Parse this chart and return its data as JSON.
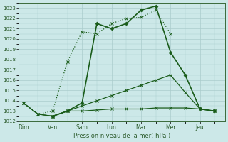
{
  "xlabel": "Pression niveau de la mer( hPa )",
  "background_color": "#cce8e8",
  "grid_color": "#aacccc",
  "line_color": "#1a5c1a",
  "ylim": [
    1012,
    1023.5
  ],
  "yticks": [
    1012,
    1013,
    1014,
    1015,
    1016,
    1017,
    1018,
    1019,
    1020,
    1021,
    1022,
    1023
  ],
  "x_labels": [
    "Dim",
    "Ven",
    "Sam",
    "Lun",
    "Mar",
    "Mer",
    "Jeu"
  ],
  "x_positions": [
    0,
    1,
    2,
    3,
    4,
    5,
    6
  ],
  "xlim": [
    -0.15,
    6.85
  ],
  "line_solid_x": [
    0,
    0.5,
    1.0,
    1.5,
    2.0,
    2.5,
    3.0,
    3.5,
    4.0,
    4.5,
    5.0,
    5.5,
    6.0,
    6.5
  ],
  "line_solid_y": [
    1013.8,
    1012.7,
    1012.5,
    1013.0,
    1013.0,
    1013.1,
    1013.2,
    1013.2,
    1013.2,
    1013.3,
    1013.3,
    1013.3,
    1013.2,
    1013.0
  ],
  "line_diag_x": [
    0,
    0.5,
    1.0,
    1.5,
    2.0,
    2.5,
    3.0,
    3.5,
    4.0,
    4.5,
    5.0,
    5.5,
    6.0,
    6.5
  ],
  "line_diag_y": [
    1013.8,
    1012.7,
    1012.5,
    1013.0,
    1013.5,
    1014.0,
    1014.5,
    1015.0,
    1015.5,
    1016.0,
    1016.5,
    1014.8,
    1013.2,
    1013.0
  ],
  "line_dotted_x": [
    0,
    0.5,
    1.0,
    1.5,
    2.0,
    2.5,
    3.0,
    3.5,
    4.0,
    4.5,
    5.0
  ],
  "line_dotted_y": [
    1013.8,
    1012.7,
    1013.0,
    1017.8,
    1020.7,
    1020.5,
    1021.5,
    1022.0,
    1022.1,
    1022.8,
    1020.5
  ],
  "line_main_x": [
    1.0,
    1.5,
    2.0,
    2.5,
    3.0,
    3.5,
    4.0,
    4.5,
    5.0,
    5.5,
    6.0,
    6.5
  ],
  "line_main_y": [
    1012.5,
    1013.0,
    1013.8,
    1021.5,
    1021.0,
    1021.5,
    1022.8,
    1023.2,
    1018.7,
    1016.5,
    1013.2,
    1013.0
  ]
}
